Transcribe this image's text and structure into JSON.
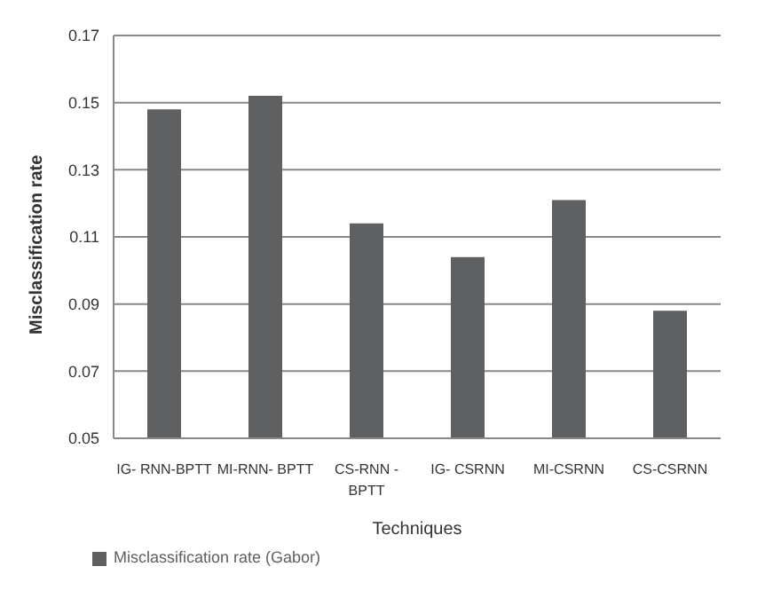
{
  "chart_data": {
    "type": "bar",
    "xlabel": "Techniques",
    "ylabel": "Misclassification  rate",
    "categories": [
      "IG- RNN-BPTT",
      "MI-RNN- BPTT",
      "CS-RNN - BPTT",
      "IG- CSRNN",
      "MI-CSRNN",
      "CS-CSRNN"
    ],
    "series": [
      {
        "name": "Misclassification rate (Gabor)",
        "color": "#5f6062",
        "values": [
          0.148,
          0.152,
          0.114,
          0.104,
          0.121,
          0.088
        ]
      }
    ],
    "ylim": [
      0.05,
      0.17
    ],
    "yticks": [
      0.05,
      0.07,
      0.09,
      0.11,
      0.13,
      0.15,
      0.17
    ],
    "grid": "y",
    "legend": "bottom left"
  }
}
